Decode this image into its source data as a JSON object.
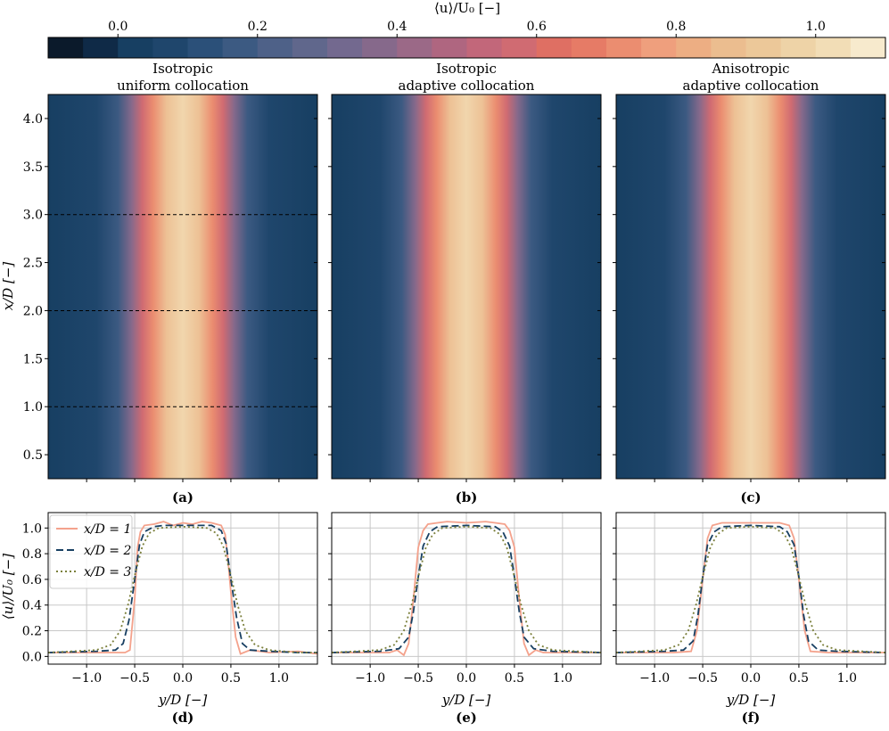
{
  "colorbar": {
    "label": "⟨u⟩/U₀ [−]",
    "ticks": [
      "0.0",
      "0.2",
      "0.4",
      "0.6",
      "0.8",
      "1.0"
    ],
    "tick_values": [
      0.0,
      0.2,
      0.4,
      0.6,
      0.8,
      1.0
    ],
    "range": [
      -0.1,
      1.1
    ],
    "colors": [
      "#0b1a2b",
      "#0f2a47",
      "#173f62",
      "#1f466c",
      "#2b5079",
      "#3c5a82",
      "#4e6188",
      "#60678c",
      "#73698f",
      "#86698b",
      "#9b6987",
      "#af6680",
      "#c2677a",
      "#d06b72",
      "#df6f63",
      "#e67b66",
      "#eb8d70",
      "#ef9f7d",
      "#edae83",
      "#ebbd8f",
      "#ecc899",
      "#eed3a7",
      "#f2ddb6",
      "#f7eacd"
    ]
  },
  "contour_panels": [
    {
      "title_line1": "Isotropic",
      "title_line2": "uniform collocation",
      "label": "(a)",
      "dashed_lines": [
        1.0,
        2.0,
        3.0
      ]
    },
    {
      "title_line1": "Isotropic",
      "title_line2": "adaptive collocation",
      "label": "(b)",
      "dashed_lines": []
    },
    {
      "title_line1": "Anisotropic",
      "title_line2": "adaptive collocation",
      "label": "(c)",
      "dashed_lines": []
    }
  ],
  "contour_y_axis": {
    "label": "x/D [−]",
    "ticks": [
      "0.5",
      "1.0",
      "1.5",
      "2.0",
      "2.5",
      "3.0",
      "3.5",
      "4.0"
    ],
    "tick_values": [
      0.5,
      1.0,
      1.5,
      2.0,
      2.5,
      3.0,
      3.5,
      4.0
    ],
    "range": [
      0.25,
      4.25
    ]
  },
  "chart_data": [
    {
      "type": "line",
      "panel_label": "(d)",
      "xlabel": "y/D [−]",
      "ylabel": "⟨u⟩/U₀ [−]",
      "xlim": [
        -1.4,
        1.4
      ],
      "ylim": [
        -0.06,
        1.12
      ],
      "xticks": [
        "−1.0",
        "−0.5",
        "0.0",
        "0.5",
        "1.0"
      ],
      "xtick_values": [
        -1.0,
        -0.5,
        0.0,
        0.5,
        1.0
      ],
      "yticks": [
        "0.0",
        "0.2",
        "0.4",
        "0.6",
        "0.8",
        "1.0"
      ],
      "ytick_values": [
        0.0,
        0.2,
        0.4,
        0.6,
        0.8,
        1.0
      ],
      "legend": {
        "placement": "top-left",
        "entries": [
          "x/D = 1",
          "x/D = 2",
          "x/D = 3"
        ]
      },
      "series": [
        {
          "name": "x/D = 1",
          "color": "#f4a28c",
          "dash": "solid",
          "x": [
            -1.4,
            -0.9,
            -0.7,
            -0.6,
            -0.55,
            -0.5,
            -0.47,
            -0.44,
            -0.4,
            -0.3,
            -0.2,
            -0.1,
            0.0,
            0.1,
            0.2,
            0.3,
            0.35,
            0.4,
            0.44,
            0.47,
            0.5,
            0.55,
            0.6,
            0.7,
            0.9,
            1.2,
            1.4
          ],
          "y": [
            0.03,
            0.03,
            0.03,
            0.03,
            0.05,
            0.45,
            0.85,
            0.97,
            1.02,
            1.03,
            1.05,
            1.02,
            1.04,
            1.03,
            1.05,
            1.04,
            1.03,
            1.02,
            0.95,
            0.75,
            0.5,
            0.15,
            0.02,
            0.05,
            0.03,
            0.04,
            0.02
          ]
        },
        {
          "name": "x/D = 2",
          "color": "#173f62",
          "dash": "8,4",
          "x": [
            -1.4,
            -0.9,
            -0.7,
            -0.62,
            -0.56,
            -0.5,
            -0.45,
            -0.4,
            -0.3,
            -0.2,
            0.0,
            0.2,
            0.3,
            0.4,
            0.45,
            0.5,
            0.56,
            0.62,
            0.7,
            0.9,
            1.2,
            1.4
          ],
          "y": [
            0.03,
            0.04,
            0.05,
            0.1,
            0.28,
            0.6,
            0.87,
            0.97,
            1.01,
            1.02,
            1.02,
            1.02,
            1.02,
            0.98,
            0.88,
            0.6,
            0.3,
            0.1,
            0.05,
            0.04,
            0.03,
            0.03
          ]
        },
        {
          "name": "x/D = 3",
          "color": "#7a7f3a",
          "dash": "2,3",
          "x": [
            -1.4,
            -0.9,
            -0.75,
            -0.65,
            -0.57,
            -0.5,
            -0.42,
            -0.35,
            -0.25,
            0.0,
            0.25,
            0.35,
            0.42,
            0.5,
            0.57,
            0.65,
            0.75,
            0.9,
            1.2,
            1.4
          ],
          "y": [
            0.03,
            0.05,
            0.09,
            0.2,
            0.4,
            0.63,
            0.86,
            0.96,
            1.0,
            1.01,
            1.0,
            0.96,
            0.86,
            0.63,
            0.4,
            0.2,
            0.09,
            0.05,
            0.03,
            0.03
          ]
        }
      ]
    },
    {
      "type": "line",
      "panel_label": "(e)",
      "xlabel": "y/D [−]",
      "xlim": [
        -1.4,
        1.4
      ],
      "ylim": [
        -0.06,
        1.12
      ],
      "xticks": [
        "−1.0",
        "−0.5",
        "0.0",
        "0.5",
        "1.0"
      ],
      "xtick_values": [
        -1.0,
        -0.5,
        0.0,
        0.5,
        1.0
      ],
      "series": [
        {
          "name": "x/D = 1",
          "color": "#f4a28c",
          "dash": "solid",
          "x": [
            -1.4,
            -0.8,
            -0.72,
            -0.65,
            -0.6,
            -0.55,
            -0.5,
            -0.45,
            -0.4,
            -0.3,
            -0.2,
            0.0,
            0.2,
            0.3,
            0.4,
            0.45,
            0.5,
            0.55,
            0.6,
            0.65,
            0.72,
            0.8,
            1.4
          ],
          "y": [
            0.03,
            0.03,
            0.05,
            0.01,
            0.1,
            0.45,
            0.85,
            0.98,
            1.03,
            1.04,
            1.05,
            1.04,
            1.05,
            1.04,
            1.03,
            0.98,
            0.85,
            0.45,
            0.1,
            0.01,
            0.05,
            0.03,
            0.03
          ]
        },
        {
          "name": "x/D = 2",
          "color": "#173f62",
          "dash": "8,4",
          "x": [
            -1.4,
            -0.9,
            -0.7,
            -0.6,
            -0.55,
            -0.5,
            -0.45,
            -0.38,
            -0.3,
            0.0,
            0.3,
            0.38,
            0.45,
            0.5,
            0.55,
            0.6,
            0.7,
            0.9,
            1.4
          ],
          "y": [
            0.03,
            0.04,
            0.06,
            0.15,
            0.35,
            0.62,
            0.86,
            0.97,
            1.01,
            1.02,
            1.01,
            0.97,
            0.86,
            0.62,
            0.35,
            0.15,
            0.06,
            0.04,
            0.03
          ]
        },
        {
          "name": "x/D = 3",
          "color": "#7a7f3a",
          "dash": "2,3",
          "x": [
            -1.4,
            -0.9,
            -0.75,
            -0.65,
            -0.57,
            -0.5,
            -0.42,
            -0.35,
            -0.25,
            0.0,
            0.25,
            0.35,
            0.42,
            0.5,
            0.57,
            0.65,
            0.75,
            0.9,
            1.4
          ],
          "y": [
            0.03,
            0.05,
            0.09,
            0.2,
            0.4,
            0.62,
            0.85,
            0.95,
            1.0,
            1.01,
            1.0,
            0.95,
            0.85,
            0.62,
            0.4,
            0.2,
            0.09,
            0.05,
            0.03
          ]
        }
      ]
    },
    {
      "type": "line",
      "panel_label": "(f)",
      "xlabel": "y/D [−]",
      "xlim": [
        -1.4,
        1.4
      ],
      "ylim": [
        -0.06,
        1.12
      ],
      "xticks": [
        "−1.0",
        "−0.5",
        "0.0",
        "0.5",
        "1.0"
      ],
      "xtick_values": [
        -1.0,
        -0.5,
        0.0,
        0.5,
        1.0
      ],
      "series": [
        {
          "name": "x/D = 1",
          "color": "#f4a28c",
          "dash": "solid",
          "x": [
            -1.4,
            -0.8,
            -0.62,
            -0.56,
            -0.5,
            -0.45,
            -0.4,
            -0.3,
            -0.2,
            0.0,
            0.2,
            0.3,
            0.4,
            0.45,
            0.5,
            0.56,
            0.62,
            0.8,
            1.4
          ],
          "y": [
            0.03,
            0.03,
            0.04,
            0.2,
            0.6,
            0.92,
            1.02,
            1.04,
            1.04,
            1.04,
            1.04,
            1.04,
            1.02,
            0.92,
            0.6,
            0.2,
            0.04,
            0.03,
            0.03
          ]
        },
        {
          "name": "x/D = 2",
          "color": "#173f62",
          "dash": "8,4",
          "x": [
            -1.4,
            -0.9,
            -0.7,
            -0.6,
            -0.55,
            -0.5,
            -0.45,
            -0.38,
            -0.3,
            0.0,
            0.3,
            0.38,
            0.45,
            0.5,
            0.55,
            0.6,
            0.7,
            0.9,
            1.4
          ],
          "y": [
            0.03,
            0.04,
            0.05,
            0.12,
            0.32,
            0.62,
            0.87,
            0.97,
            1.01,
            1.02,
            1.01,
            0.97,
            0.87,
            0.62,
            0.32,
            0.12,
            0.05,
            0.04,
            0.03
          ]
        },
        {
          "name": "x/D = 3",
          "color": "#7a7f3a",
          "dash": "2,3",
          "x": [
            -1.4,
            -0.9,
            -0.75,
            -0.65,
            -0.57,
            -0.5,
            -0.42,
            -0.35,
            -0.25,
            0.0,
            0.25,
            0.35,
            0.42,
            0.5,
            0.57,
            0.65,
            0.75,
            0.9,
            1.4
          ],
          "y": [
            0.03,
            0.05,
            0.09,
            0.2,
            0.4,
            0.62,
            0.85,
            0.95,
            1.0,
            1.01,
            1.0,
            0.95,
            0.85,
            0.62,
            0.4,
            0.2,
            0.09,
            0.05,
            0.03
          ]
        }
      ]
    }
  ]
}
